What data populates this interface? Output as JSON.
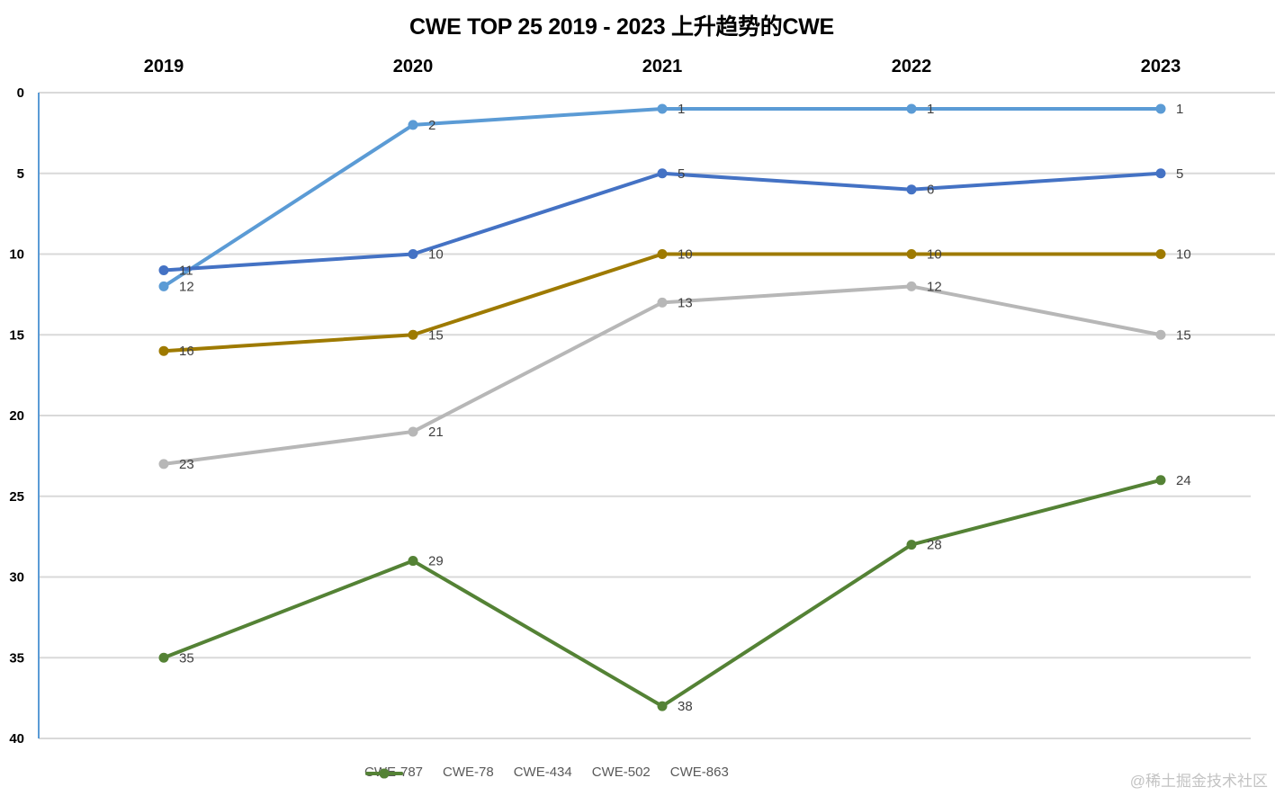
{
  "title": "CWE TOP 25 2019 - 2023 上升趋势的CWE",
  "watermark": "@稀土掘金技术社区",
  "chart_data": {
    "type": "line",
    "title": "CWE TOP 25 2019 - 2023 上升趋势的CWE",
    "xlabel": "",
    "ylabel": "",
    "categories": [
      "2019",
      "2020",
      "2021",
      "2022",
      "2023"
    ],
    "x_axis_position": "top",
    "y_axis_reversed": true,
    "ylim": [
      0,
      40
    ],
    "yticks": [
      0,
      5,
      10,
      15,
      20,
      25,
      30,
      35,
      40
    ],
    "grid": true,
    "legend_position": "bottom",
    "data_labels": true,
    "series": [
      {
        "name": "CWE-787",
        "color": "#5B9BD5",
        "values": [
          12,
          2,
          1,
          1,
          1
        ]
      },
      {
        "name": "CWE-78",
        "color": "#4472C4",
        "values": [
          11,
          10,
          5,
          6,
          5
        ]
      },
      {
        "name": "CWE-434",
        "color": "#9E7A00",
        "values": [
          16,
          15,
          10,
          10,
          10
        ]
      },
      {
        "name": "CWE-502",
        "color": "#B7B7B7",
        "values": [
          23,
          21,
          13,
          12,
          15
        ]
      },
      {
        "name": "CWE-863",
        "color": "#548235",
        "values": [
          35,
          29,
          38,
          28,
          24
        ]
      }
    ]
  }
}
